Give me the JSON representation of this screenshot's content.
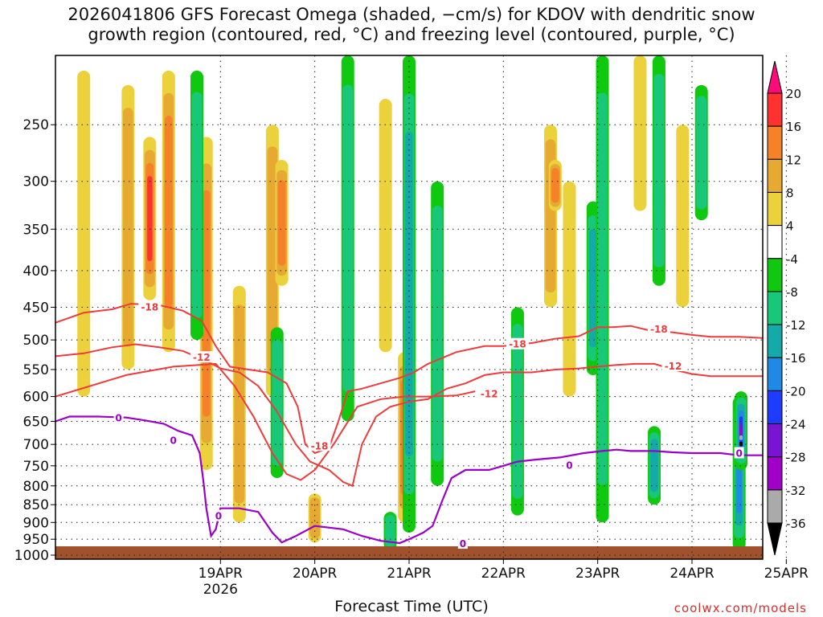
{
  "title": "2026041806 GFS Forecast Omega (shaded, −cm/s) for KDOV with dendritic snow\ngrowth region (contoured, red, °C) and freezing level (contoured, purple, °C)",
  "credit": "coolwx.com/models",
  "chart_data": {
    "type": "heatmap",
    "title": "2026041806 GFS Forecast Omega (shaded, −cm/s) for KDOV with dendritic snow growth region (contoured, red, °C) and freezing level (contoured, purple, °C)",
    "xlabel": "Forecast Time (UTC)",
    "ylabel": "",
    "x_ticks": [
      {
        "label": "19APR",
        "sublabel": "2026",
        "day": 1.0
      },
      {
        "label": "20APR",
        "day": 2.0
      },
      {
        "label": "21APR",
        "day": 3.0
      },
      {
        "label": "22APR",
        "day": 4.0
      },
      {
        "label": "23APR",
        "day": 5.0
      },
      {
        "label": "24APR",
        "day": 6.0
      },
      {
        "label": "25APR",
        "day": 7.0
      }
    ],
    "xlim_days": [
      -0.75,
      6.75
    ],
    "y_ticks": [
      250,
      300,
      350,
      400,
      450,
      500,
      550,
      600,
      650,
      700,
      750,
      800,
      850,
      900,
      950,
      1000
    ],
    "ylim_hpa": [
      200,
      1013
    ],
    "grid": true,
    "colorbar": {
      "levels": [
        20,
        16,
        12,
        8,
        4,
        -4,
        -8,
        -12,
        -16,
        -20,
        -24,
        -28,
        -32,
        -36
      ],
      "colors": [
        "#ff0a78",
        "#ff3232",
        "#f58228",
        "#e6aa32",
        "#ebd23c",
        "#ffffff",
        "#10c810",
        "#18c878",
        "#14aaaa",
        "#2288e6",
        "#1e3cff",
        "#7814d2",
        "#a000c8",
        "#aaaaaa",
        "#000000"
      ]
    },
    "omega_features": [
      {
        "day": -0.45,
        "p_top": 210,
        "p_bot": 600,
        "omega": 6
      },
      {
        "day": 0.02,
        "p_top": 220,
        "p_bot": 550,
        "omega": 10
      },
      {
        "day": 0.25,
        "p_top": 260,
        "p_bot": 440,
        "omega": 16
      },
      {
        "day": 0.45,
        "p_top": 210,
        "p_bot": 520,
        "omega": 12
      },
      {
        "day": 0.85,
        "p_top": 260,
        "p_bot": 760,
        "omega": 12
      },
      {
        "day": 0.75,
        "p_top": 210,
        "p_bot": 500,
        "omega": -10
      },
      {
        "day": 1.2,
        "p_top": 420,
        "p_bot": 900,
        "omega": 8
      },
      {
        "day": 1.55,
        "p_top": 250,
        "p_bot": 600,
        "omega": 8
      },
      {
        "day": 1.65,
        "p_top": 280,
        "p_bot": 420,
        "omega": 14
      },
      {
        "day": 1.6,
        "p_top": 480,
        "p_bot": 780,
        "omega": -8
      },
      {
        "day": 2.0,
        "p_top": 820,
        "p_bot": 960,
        "omega": 10
      },
      {
        "day": 2.35,
        "p_top": 200,
        "p_bot": 650,
        "omega": -8
      },
      {
        "day": 2.75,
        "p_top": 230,
        "p_bot": 520,
        "omega": 6
      },
      {
        "day": 2.95,
        "p_top": 520,
        "p_bot": 900,
        "omega": 12
      },
      {
        "day": 3.0,
        "p_top": 200,
        "p_bot": 930,
        "omega": -12
      },
      {
        "day": 3.3,
        "p_top": 300,
        "p_bot": 800,
        "omega": -8
      },
      {
        "day": 2.8,
        "p_top": 870,
        "p_bot": 985,
        "omega": -8
      },
      {
        "day": 4.5,
        "p_top": 250,
        "p_bot": 450,
        "omega": 8
      },
      {
        "day": 4.55,
        "p_top": 280,
        "p_bot": 330,
        "omega": 14
      },
      {
        "day": 4.7,
        "p_top": 300,
        "p_bot": 600,
        "omega": 6
      },
      {
        "day": 4.15,
        "p_top": 450,
        "p_bot": 880,
        "omega": -8
      },
      {
        "day": 4.95,
        "p_top": 320,
        "p_bot": 560,
        "omega": -14
      },
      {
        "day": 5.05,
        "p_top": 200,
        "p_bot": 900,
        "omega": -8
      },
      {
        "day": 5.45,
        "p_top": 200,
        "p_bot": 330,
        "omega": 6
      },
      {
        "day": 5.65,
        "p_top": 200,
        "p_bot": 420,
        "omega": -10
      },
      {
        "day": 5.9,
        "p_top": 250,
        "p_bot": 450,
        "omega": 6
      },
      {
        "day": 6.1,
        "p_top": 220,
        "p_bot": 340,
        "omega": -8
      },
      {
        "day": 5.6,
        "p_top": 660,
        "p_bot": 850,
        "omega": -12
      },
      {
        "day": 6.5,
        "p_top": 600,
        "p_bot": 985,
        "omega": -18
      },
      {
        "day": 6.52,
        "p_top": 590,
        "p_bot": 760,
        "omega": -38
      }
    ],
    "dgz_contours": [
      {
        "label": "-18",
        "points": [
          [
            -0.75,
            473
          ],
          [
            -0.45,
            458
          ],
          [
            -0.15,
            453
          ],
          [
            0.05,
            445
          ],
          [
            0.35,
            447
          ],
          [
            0.6,
            455
          ],
          [
            0.8,
            470
          ],
          [
            0.95,
            510
          ],
          [
            1.1,
            545
          ],
          [
            1.3,
            550
          ],
          [
            1.5,
            555
          ],
          [
            1.7,
            575
          ],
          [
            1.82,
            620
          ],
          [
            1.9,
            700
          ],
          [
            2.0,
            720
          ],
          [
            2.15,
            708
          ],
          [
            2.25,
            650
          ],
          [
            2.35,
            590
          ],
          [
            2.5,
            585
          ],
          [
            2.7,
            575
          ],
          [
            2.9,
            565
          ],
          [
            3.05,
            555
          ],
          [
            3.2,
            540
          ],
          [
            3.5,
            520
          ],
          [
            3.8,
            510
          ],
          [
            4.0,
            510
          ],
          [
            4.3,
            505
          ],
          [
            4.55,
            498
          ],
          [
            4.8,
            494
          ],
          [
            5.0,
            480
          ],
          [
            5.15,
            480
          ],
          [
            5.35,
            478
          ],
          [
            5.55,
            485
          ],
          [
            5.8,
            488
          ],
          [
            6.0,
            492
          ],
          [
            6.2,
            495
          ],
          [
            6.5,
            495
          ],
          [
            6.75,
            497
          ]
        ]
      },
      {
        "label": "-12",
        "points": [
          [
            -0.75,
            527
          ],
          [
            -0.45,
            522
          ],
          [
            -0.15,
            512
          ],
          [
            0.1,
            507
          ],
          [
            0.35,
            512
          ],
          [
            0.6,
            518
          ],
          [
            0.85,
            535
          ],
          [
            1.0,
            548
          ],
          [
            1.2,
            555
          ],
          [
            1.4,
            580
          ],
          [
            1.6,
            630
          ],
          [
            1.8,
            700
          ],
          [
            1.95,
            740
          ],
          [
            2.15,
            760
          ],
          [
            2.3,
            790
          ],
          [
            2.4,
            800
          ],
          [
            2.5,
            700
          ],
          [
            2.65,
            640
          ],
          [
            2.8,
            620
          ],
          [
            3.0,
            610
          ],
          [
            3.2,
            605
          ],
          [
            3.4,
            585
          ],
          [
            3.6,
            575
          ],
          [
            3.8,
            560
          ],
          [
            4.0,
            555
          ],
          [
            4.3,
            555
          ],
          [
            4.55,
            550
          ],
          [
            4.8,
            548
          ],
          [
            5.0,
            545
          ],
          [
            5.2,
            542
          ],
          [
            5.4,
            540
          ],
          [
            5.6,
            540
          ],
          [
            5.8,
            550
          ],
          [
            6.0,
            558
          ],
          [
            6.2,
            562
          ],
          [
            6.5,
            562
          ],
          [
            6.75,
            562
          ]
        ]
      },
      {
        "label": "-12",
        "points": [
          [
            -0.75,
            600
          ],
          [
            0.0,
            560
          ],
          [
            0.5,
            545
          ],
          [
            0.95,
            540
          ],
          [
            1.15,
            580
          ],
          [
            1.35,
            640
          ],
          [
            1.55,
            720
          ],
          [
            1.7,
            770
          ],
          [
            1.85,
            785
          ],
          [
            2.0,
            760
          ],
          [
            2.2,
            700
          ],
          [
            2.45,
            620
          ],
          [
            2.7,
            605
          ],
          [
            2.95,
            600
          ],
          [
            3.2,
            600
          ],
          [
            3.5,
            598
          ],
          [
            3.7,
            590
          ]
        ]
      }
    ],
    "freezing_contour": {
      "label": "0",
      "points": [
        [
          -0.75,
          650
        ],
        [
          -0.6,
          640
        ],
        [
          -0.3,
          640
        ],
        [
          0.0,
          642
        ],
        [
          0.2,
          648
        ],
        [
          0.4,
          655
        ],
        [
          0.55,
          670
        ],
        [
          0.7,
          680
        ],
        [
          0.78,
          720
        ],
        [
          0.82,
          790
        ],
        [
          0.85,
          860
        ],
        [
          0.9,
          940
        ],
        [
          0.95,
          920
        ],
        [
          1.0,
          860
        ],
        [
          1.2,
          860
        ],
        [
          1.4,
          870
        ],
        [
          1.55,
          930
        ],
        [
          1.65,
          960
        ],
        [
          1.8,
          940
        ],
        [
          2.0,
          910
        ],
        [
          2.3,
          920
        ],
        [
          2.5,
          940
        ],
        [
          2.7,
          955
        ],
        [
          2.9,
          962
        ],
        [
          3.0,
          950
        ],
        [
          3.15,
          930
        ],
        [
          3.25,
          910
        ],
        [
          3.35,
          840
        ],
        [
          3.45,
          780
        ],
        [
          3.6,
          760
        ],
        [
          3.85,
          760
        ],
        [
          4.0,
          750
        ],
        [
          4.15,
          740
        ],
        [
          4.35,
          735
        ],
        [
          4.6,
          730
        ],
        [
          4.85,
          720
        ],
        [
          5.05,
          715
        ],
        [
          5.2,
          712
        ],
        [
          5.35,
          715
        ],
        [
          5.6,
          715
        ],
        [
          5.8,
          718
        ],
        [
          6.0,
          720
        ],
        [
          6.3,
          720
        ],
        [
          6.5,
          725
        ],
        [
          6.75,
          725
        ]
      ]
    },
    "contour_labels": [
      {
        "text": "-18",
        "day": 0.25,
        "p": 449,
        "color": "#ee3b3b"
      },
      {
        "text": "-12",
        "day": 0.8,
        "p": 528,
        "color": "#ee3b3b"
      },
      {
        "text": "-18",
        "day": 2.05,
        "p": 702,
        "color": "#ee3b3b"
      },
      {
        "text": "-18",
        "day": 4.15,
        "p": 506,
        "color": "#ee3b3b"
      },
      {
        "text": "-12",
        "day": 3.85,
        "p": 594,
        "color": "#ee3b3b"
      },
      {
        "text": "-18",
        "day": 5.65,
        "p": 482,
        "color": "#ee3b3b"
      },
      {
        "text": "-12",
        "day": 5.8,
        "p": 543,
        "color": "#ee3b3b"
      },
      {
        "text": "0",
        "day": -0.08,
        "p": 642,
        "color": "#9a00c8"
      },
      {
        "text": "0",
        "day": 0.5,
        "p": 690,
        "color": "#9a00c8"
      },
      {
        "text": "0",
        "day": 0.98,
        "p": 880,
        "color": "#9a00c8"
      },
      {
        "text": "0",
        "day": 3.57,
        "p": 962,
        "color": "#9a00c8"
      },
      {
        "text": "0",
        "day": 4.7,
        "p": 747,
        "color": "#9a00c8"
      },
      {
        "text": "0",
        "day": 6.5,
        "p": 719,
        "color": "#9a00c8"
      }
    ]
  }
}
